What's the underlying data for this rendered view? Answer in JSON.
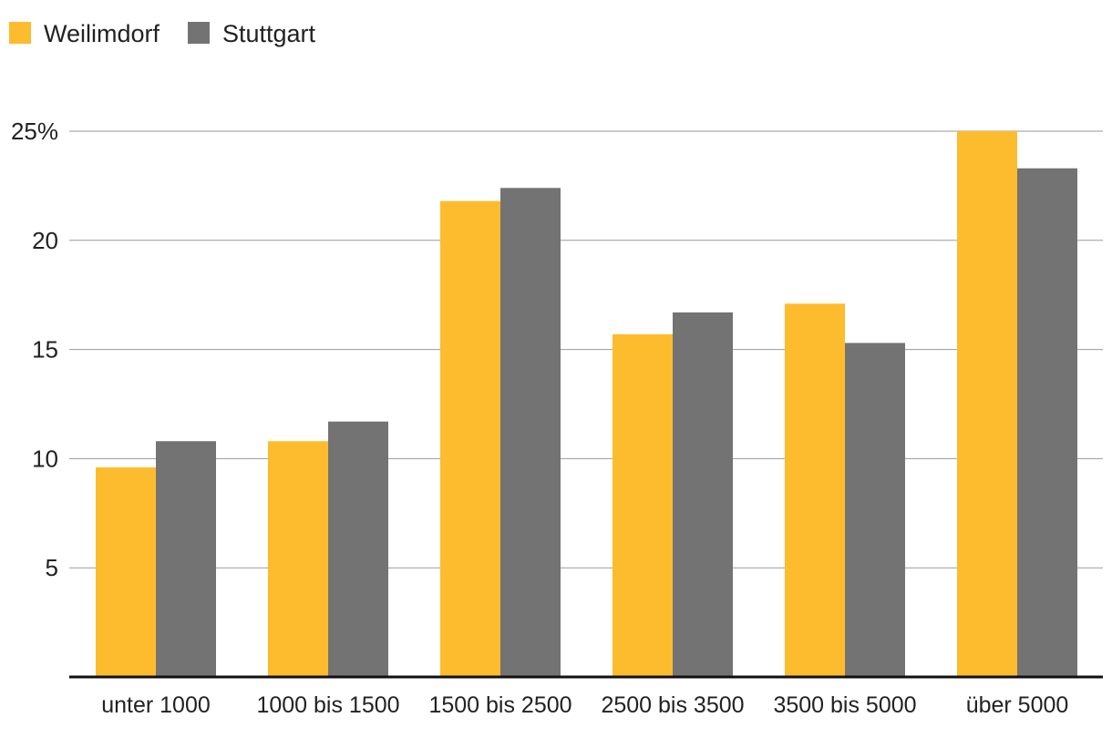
{
  "chart_data": {
    "type": "bar",
    "categories": [
      "unter 1000",
      "1000 bis 1500",
      "1500 bis 2500",
      "2500 bis 3500",
      "3500 bis 5000",
      "über 5000"
    ],
    "series": [
      {
        "name": "Weilimdorf",
        "color": "#FDBC2E",
        "values": [
          9.6,
          10.8,
          21.8,
          15.7,
          17.1,
          25.0
        ]
      },
      {
        "name": "Stuttgart",
        "color": "#737373",
        "values": [
          10.8,
          11.7,
          22.4,
          16.7,
          15.3,
          23.3
        ]
      }
    ],
    "y_ticks": [
      {
        "value": 5,
        "label": "5"
      },
      {
        "value": 10,
        "label": "10"
      },
      {
        "value": 15,
        "label": "15"
      },
      {
        "value": 20,
        "label": "20"
      },
      {
        "value": 25,
        "label": "25%"
      }
    ],
    "ylim": [
      0,
      25
    ],
    "grid": true,
    "legend_position": "top-left"
  }
}
